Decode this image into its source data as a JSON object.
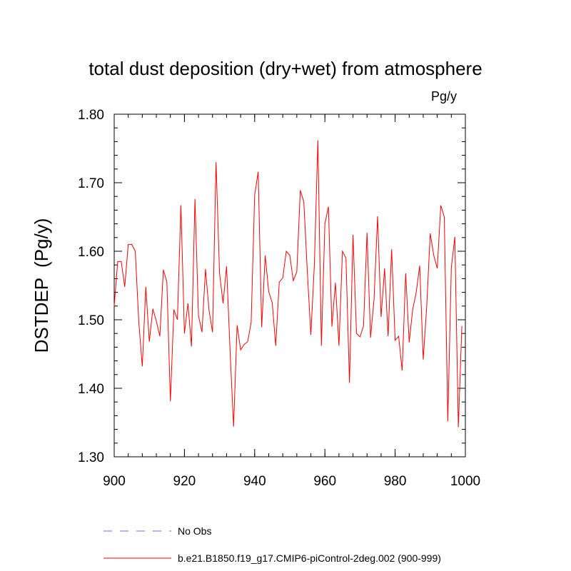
{
  "chart_data": {
    "type": "line",
    "title": "total dust deposition (dry+wet) from atmosphere",
    "units_label": "Pg/y",
    "ylabel": "DSTDEP  (Pg/y)",
    "xlabel": "",
    "xlim": [
      900,
      1000
    ],
    "ylim": [
      1.3,
      1.8
    ],
    "x_ticks": [
      900,
      920,
      940,
      960,
      980,
      1000
    ],
    "x_tick_labels": [
      "900",
      "920",
      "940",
      "960",
      "980",
      "1000"
    ],
    "y_ticks": [
      1.3,
      1.4,
      1.5,
      1.6,
      1.7,
      1.8
    ],
    "y_tick_labels": [
      "1.30",
      "1.40",
      "1.50",
      "1.60",
      "1.70",
      "1.80"
    ],
    "grid": false,
    "legend_position": "bottom-left, below plot",
    "series": [
      {
        "name": "b.e21.B1850.f19_g17.CMIP6-piControl-2deg.002 (900-999)",
        "color": "#ff0000",
        "style": "solid",
        "x_start": 900,
        "x_step": 1,
        "values": [
          1.52,
          1.585,
          1.585,
          1.548,
          1.61,
          1.61,
          1.6,
          1.497,
          1.432,
          1.548,
          1.468,
          1.516,
          1.498,
          1.476,
          1.573,
          1.555,
          1.381,
          1.515,
          1.5,
          1.667,
          1.48,
          1.524,
          1.461,
          1.676,
          1.506,
          1.482,
          1.574,
          1.514,
          1.482,
          1.73,
          1.568,
          1.524,
          1.578,
          1.454,
          1.344,
          1.492,
          1.456,
          1.464,
          1.468,
          1.496,
          1.682,
          1.716,
          1.489,
          1.594,
          1.541,
          1.525,
          1.462,
          1.555,
          1.561,
          1.6,
          1.594,
          1.557,
          1.57,
          1.689,
          1.672,
          1.57,
          1.478,
          1.58,
          1.762,
          1.462,
          1.64,
          1.665,
          1.49,
          1.554,
          1.462,
          1.6,
          1.59,
          1.408,
          1.624,
          1.48,
          1.475,
          1.491,
          1.627,
          1.474,
          1.53,
          1.651,
          1.504,
          1.575,
          1.476,
          1.603,
          1.47,
          1.476,
          1.426,
          1.568,
          1.467,
          1.515,
          1.54,
          1.579,
          1.442,
          1.52,
          1.626,
          1.594,
          1.575,
          1.667,
          1.65,
          1.352,
          1.576,
          1.621,
          1.343,
          1.491
        ]
      },
      {
        "name": "No Obs",
        "color": "#6a6aff",
        "style": "dashed",
        "values": []
      }
    ]
  }
}
